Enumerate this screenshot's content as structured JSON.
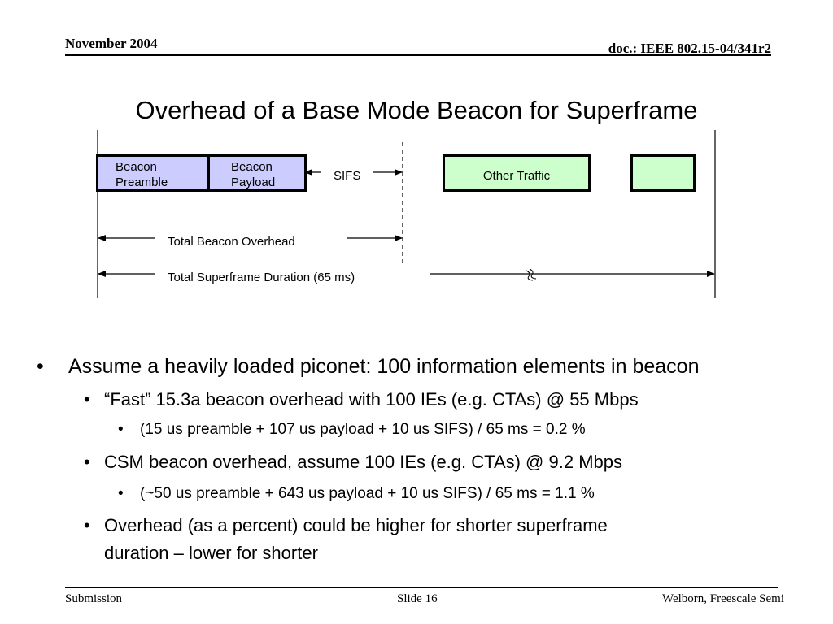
{
  "header": {
    "date": "November 2004",
    "doc_id": "doc.: IEEE 802.15-04/341r2"
  },
  "title": "Overhead of a Base Mode Beacon for Superframe",
  "diagram": {
    "beacon_preamble": [
      "Beacon",
      "Preamble"
    ],
    "beacon_payload": [
      "Beacon",
      "Payload"
    ],
    "sifs": "SIFS",
    "other_traffic": "Other Traffic",
    "total_beacon_overhead": "Total Beacon Overhead",
    "total_superframe_duration": "Total Superframe Duration (65 ms)",
    "colors": {
      "beacon": "#ccccff",
      "traffic": "#ccffcc"
    }
  },
  "bullets": {
    "b1": "Assume a heavily loaded piconet: 100 information elements in beacon",
    "b1_1": "“Fast” 15.3a beacon overhead with 100 IEs (e.g. CTAs) @ 55 Mbps",
    "b1_1_1": "(15 us preamble + 107 us payload + 10 us SIFS) / 65 ms = 0.2 %",
    "b1_2": "CSM beacon overhead, assume 100 IEs (e.g. CTAs) @ 9.2 Mbps",
    "b1_2_1": "(~50 us preamble + 643 us payload + 10 us SIFS) / 65 ms = 1.1 %",
    "b1_3_line1": "Overhead (as a percent) could be higher for shorter superframe",
    "b1_3_line2": "duration – lower for shorter",
    "bullet_char": "•"
  },
  "footer": {
    "left": "Submission",
    "center": "Slide 16",
    "right": "Welborn, Freescale Semi"
  }
}
